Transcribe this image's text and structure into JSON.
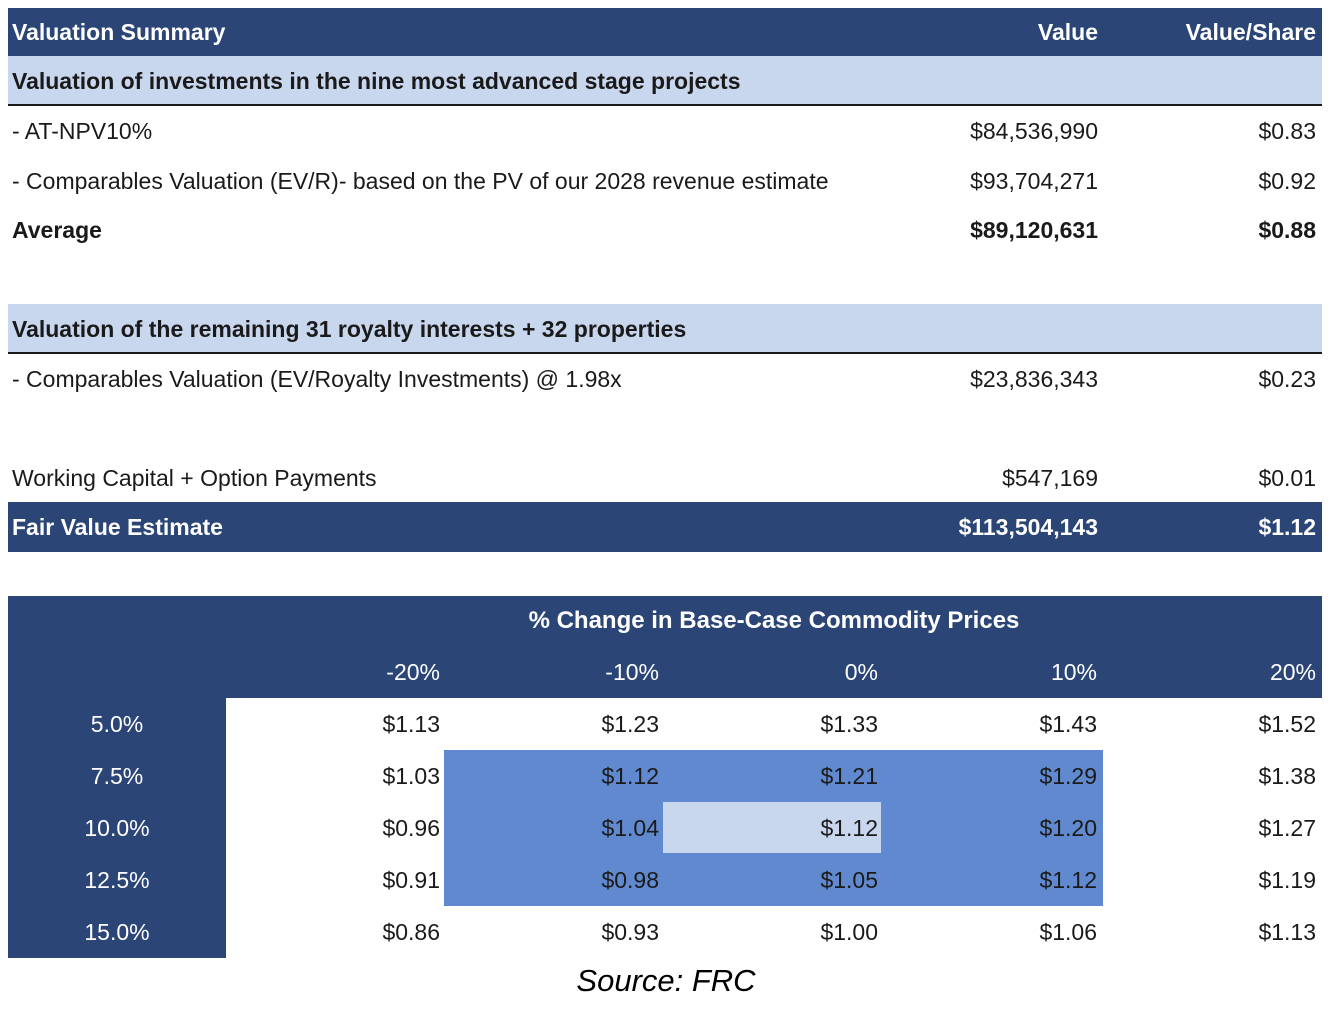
{
  "summary": {
    "header": {
      "title": "Valuation Summary",
      "value": "Value",
      "value_share": "Value/Share"
    },
    "section1": "Valuation of investments in the nine most advanced stage projects",
    "rows1": [
      {
        "label": " - AT-NPV10%",
        "value": "$84,536,990",
        "per_share": "$0.83"
      },
      {
        "label": " - Comparables Valuation (EV/R)- based on the PV of our 2028 revenue estimate",
        "value": "$93,704,271",
        "per_share": "$0.92"
      }
    ],
    "average": {
      "label": "Average",
      "value": "$89,120,631",
      "per_share": "$0.88"
    },
    "section2": "Valuation of the remaining 31 royalty interests + 32 properties",
    "rows2": [
      {
        "label": " - Comparables Valuation (EV/Royalty Investments) @ 1.98x",
        "value": "$23,836,343",
        "per_share": "$0.23"
      }
    ],
    "working_capital": {
      "label": "Working Capital + Option Payments",
      "value": "$547,169",
      "per_share": "$0.01"
    },
    "fair_value": {
      "label": "Fair Value Estimate",
      "value": "$113,504,143",
      "per_share": "$1.12"
    }
  },
  "sensitivity": {
    "title": "% Change in Base-Case Commodity Prices",
    "columns": [
      "-20%",
      "-10%",
      "0%",
      "10%",
      "20%"
    ],
    "rows": [
      {
        "rate": "5.0%",
        "values": [
          "$1.13",
          "$1.23",
          "$1.33",
          "$1.43",
          "$1.52"
        ]
      },
      {
        "rate": "7.5%",
        "values": [
          "$1.03",
          "$1.12",
          "$1.21",
          "$1.29",
          "$1.38"
        ]
      },
      {
        "rate": "10.0%",
        "values": [
          "$0.96",
          "$1.04",
          "$1.12",
          "$1.20",
          "$1.27"
        ]
      },
      {
        "rate": "12.5%",
        "values": [
          "$0.91",
          "$0.98",
          "$1.05",
          "$1.12",
          "$1.19"
        ]
      },
      {
        "rate": "15.0%",
        "values": [
          "$0.86",
          "$0.93",
          "$1.00",
          "$1.06",
          "$1.13"
        ]
      }
    ],
    "colors": {
      "header": "#2b4577",
      "highlight": "#6089cf",
      "base": "#c8d6ee"
    }
  },
  "source": "Source: FRC"
}
